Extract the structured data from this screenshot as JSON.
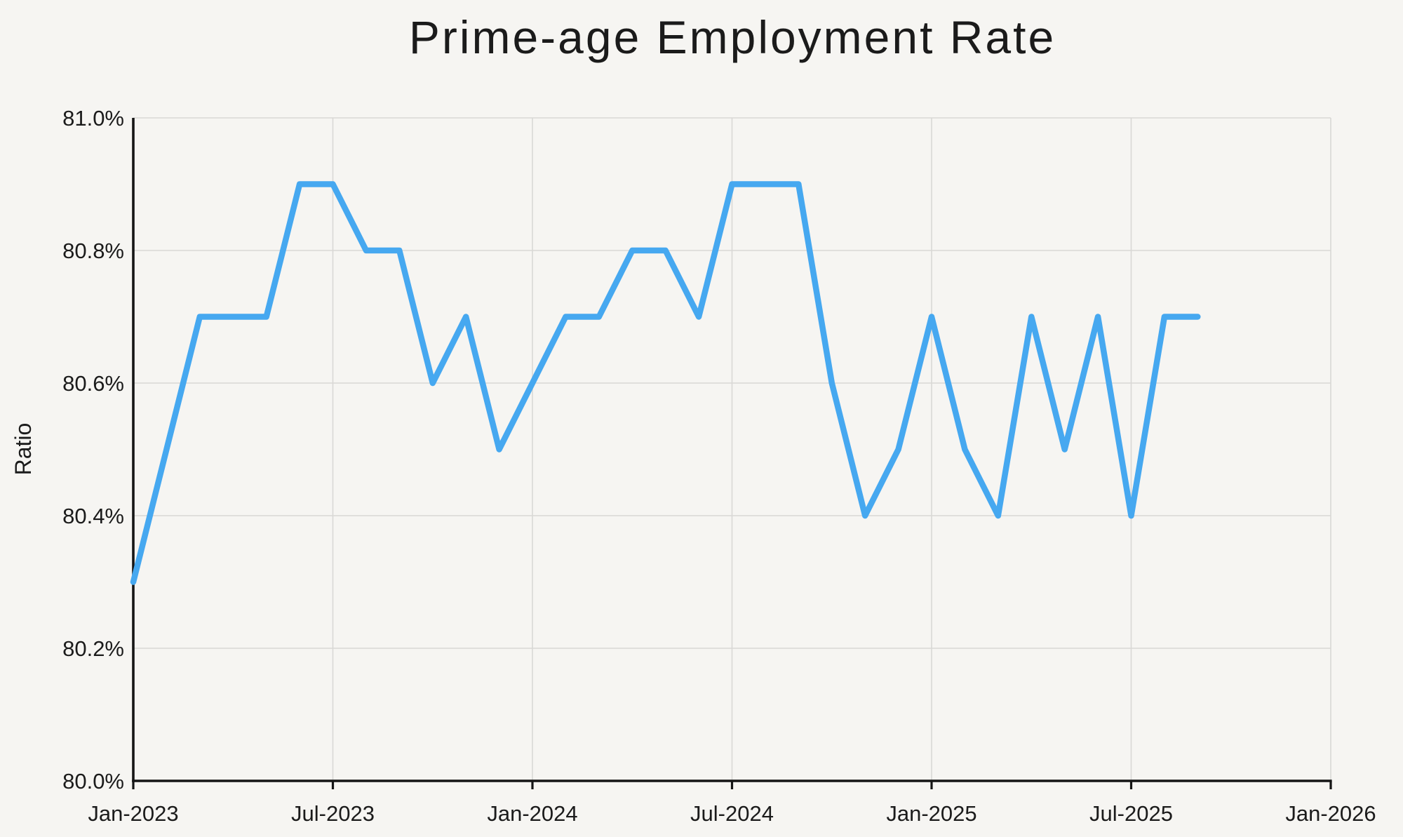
{
  "page": {
    "background_color": "#f6f5f2",
    "text_color": "#1b1b1b"
  },
  "chart": {
    "title": "Prime-age Employment Rate",
    "ylabel": "Ratio"
  },
  "chart_data": {
    "type": "line",
    "title": "Prime-age Employment Rate",
    "xlabel": "",
    "ylabel": "Ratio",
    "x": [
      "Jan-2023",
      "Feb-2023",
      "Mar-2023",
      "Apr-2023",
      "May-2023",
      "Jun-2023",
      "Jul-2023",
      "Aug-2023",
      "Sep-2023",
      "Oct-2023",
      "Nov-2023",
      "Dec-2023",
      "Jan-2024",
      "Feb-2024",
      "Mar-2024",
      "Apr-2024",
      "May-2024",
      "Jun-2024",
      "Jul-2024",
      "Aug-2024",
      "Sep-2024",
      "Oct-2024",
      "Nov-2024",
      "Dec-2024",
      "Jan-2025",
      "Feb-2025",
      "Mar-2025",
      "Apr-2025",
      "May-2025",
      "Jun-2025",
      "Jul-2025",
      "Aug-2025",
      "Sep-2025"
    ],
    "values": [
      80.3,
      80.5,
      80.7,
      80.7,
      80.7,
      80.9,
      80.9,
      80.8,
      80.8,
      80.6,
      80.7,
      80.5,
      80.6,
      80.7,
      80.7,
      80.8,
      80.8,
      80.7,
      80.9,
      80.9,
      80.9,
      80.6,
      80.4,
      80.5,
      80.7,
      80.5,
      80.4,
      80.7,
      80.5,
      80.7,
      80.4,
      80.7,
      80.7
    ],
    "ylim": [
      80.0,
      81.0
    ],
    "yticks": [
      80.0,
      80.2,
      80.4,
      80.6,
      80.8,
      81.0
    ],
    "ytick_labels": [
      "80.0%",
      "80.2%",
      "80.4%",
      "80.6%",
      "80.8%",
      "81.0%"
    ],
    "xtick_labels": [
      "Jan-2023",
      "Jul-2023",
      "Jan-2024",
      "Jul-2024",
      "Jan-2025",
      "Jul-2025",
      "Jan-2026"
    ],
    "xtick_month_offsets": [
      0,
      6,
      12,
      18,
      24,
      30,
      36
    ],
    "x_axis_span_months": 36,
    "grid": true,
    "legend_position": "none",
    "line_color": "#46a8f0",
    "line_width": 8.5,
    "grid_color": "#d9d8d5",
    "axis_color": "#151515"
  }
}
